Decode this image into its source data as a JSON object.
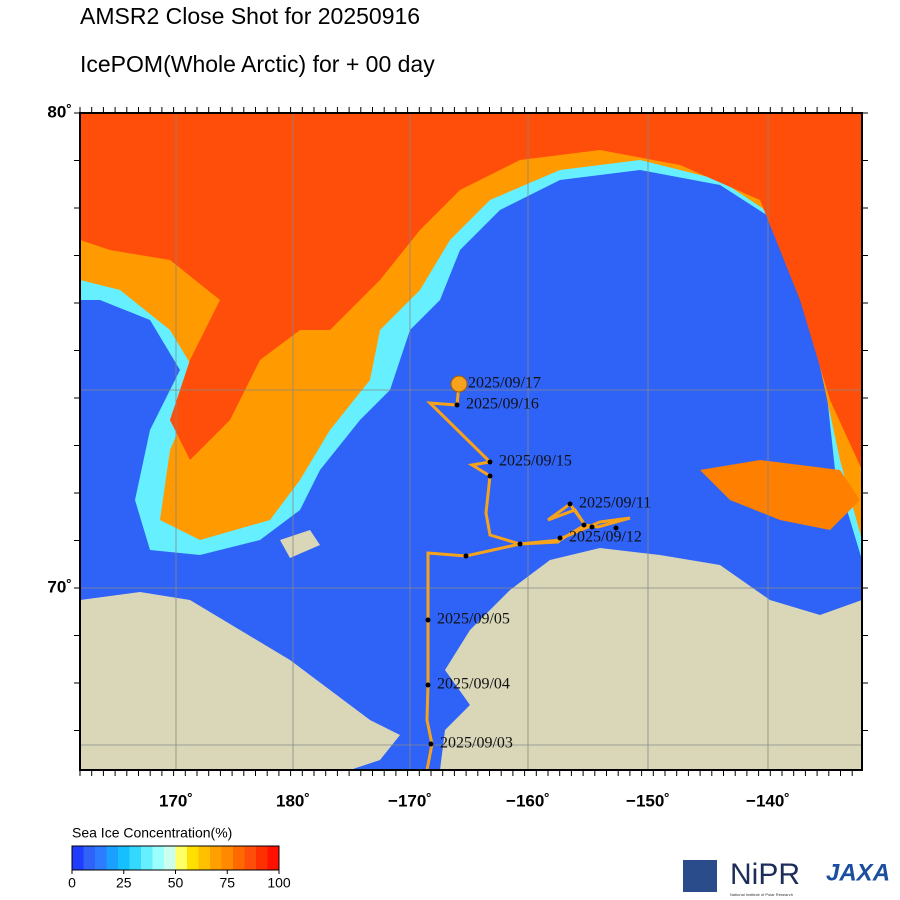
{
  "header": {
    "title": "AMSR2 Close Shot for 20250916",
    "subtitle": "IcePOM(Whole Arctic) for  + 00 day"
  },
  "map": {
    "lat_labels": [
      "80˚",
      "70˚"
    ],
    "lon_labels": [
      "170˚",
      "180˚",
      "−170˚",
      "−160˚",
      "−150˚",
      "−140˚"
    ],
    "track_labels": [
      "2025/09/17",
      "2025/09/16",
      "2025/09/15",
      "2025/09/11",
      "2025/09/12",
      "2025/09/05",
      "2025/09/04",
      "2025/09/03"
    ]
  },
  "colorbar": {
    "title": "Sea Ice Concentration(%)",
    "ticks": [
      0,
      25,
      50,
      75,
      100
    ]
  },
  "logos": {
    "nipr": "NiPR",
    "nipr_full": "National Institute of Polar Research",
    "jaxa": "JAXA"
  }
}
